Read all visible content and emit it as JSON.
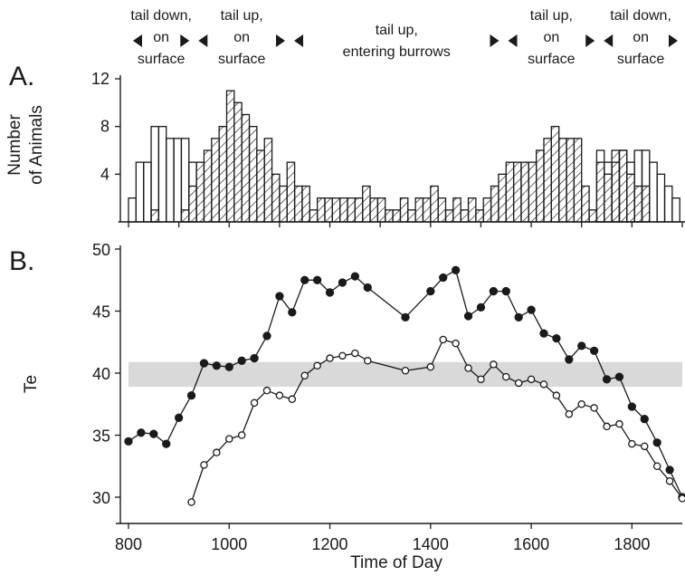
{
  "panel_labels": {
    "a": "A.",
    "b": "B."
  },
  "phases": [
    {
      "lines": [
        "tail down,",
        "on",
        "surface"
      ]
    },
    {
      "lines": [
        "tail up,",
        "on",
        "surface"
      ]
    },
    {
      "lines": [
        "tail up,",
        "entering burrows"
      ]
    },
    {
      "lines": [
        "tail up,",
        "on",
        "surface"
      ]
    },
    {
      "lines": [
        "tail down,",
        "on",
        "surface"
      ]
    }
  ],
  "colors": {
    "ink": "#1a1a1a",
    "band": "#d9d9d9",
    "background": "#ffffff"
  },
  "chart_data": [
    {
      "type": "bar",
      "panel": "A",
      "ylabel": [
        "Number",
        "of Animals"
      ],
      "ylim": [
        0,
        12
      ],
      "yticks": [
        4,
        8,
        12
      ],
      "xlim": [
        780,
        1910
      ],
      "xticks": [
        800,
        900,
        1000,
        1100,
        1200,
        1300,
        1400,
        1500,
        1600,
        1700,
        1800,
        1900
      ],
      "bin_width_minutes": 15,
      "series": [
        {
          "style": "open",
          "values": [
            {
              "x": 800,
              "y": 2
            },
            {
              "x": 815,
              "y": 5
            },
            {
              "x": 830,
              "y": 5
            },
            {
              "x": 845,
              "y": 8
            },
            {
              "x": 860,
              "y": 8
            },
            {
              "x": 875,
              "y": 7
            },
            {
              "x": 890,
              "y": 7
            },
            {
              "x": 905,
              "y": 7
            },
            {
              "x": 920,
              "y": 5
            },
            {
              "x": 1730,
              "y": 6
            },
            {
              "x": 1745,
              "y": 5
            },
            {
              "x": 1760,
              "y": 5
            },
            {
              "x": 1775,
              "y": 6
            },
            {
              "x": 1790,
              "y": 5
            },
            {
              "x": 1805,
              "y": 6
            },
            {
              "x": 1820,
              "y": 6
            },
            {
              "x": 1835,
              "y": 5
            },
            {
              "x": 1850,
              "y": 4
            },
            {
              "x": 1865,
              "y": 3
            },
            {
              "x": 1880,
              "y": 2
            }
          ]
        },
        {
          "style": "hatched",
          "values": [
            {
              "x": 845,
              "y": 1
            },
            {
              "x": 905,
              "y": 1
            },
            {
              "x": 920,
              "y": 3
            },
            {
              "x": 935,
              "y": 5
            },
            {
              "x": 950,
              "y": 6
            },
            {
              "x": 965,
              "y": 7
            },
            {
              "x": 980,
              "y": 8
            },
            {
              "x": 995,
              "y": 11
            },
            {
              "x": 1010,
              "y": 10
            },
            {
              "x": 1025,
              "y": 9
            },
            {
              "x": 1040,
              "y": 8
            },
            {
              "x": 1055,
              "y": 6
            },
            {
              "x": 1070,
              "y": 7
            },
            {
              "x": 1085,
              "y": 4
            },
            {
              "x": 1100,
              "y": 3
            },
            {
              "x": 1115,
              "y": 5
            },
            {
              "x": 1130,
              "y": 3
            },
            {
              "x": 1145,
              "y": 3
            },
            {
              "x": 1160,
              "y": 1
            },
            {
              "x": 1175,
              "y": 2
            },
            {
              "x": 1190,
              "y": 2
            },
            {
              "x": 1205,
              "y": 2
            },
            {
              "x": 1220,
              "y": 2
            },
            {
              "x": 1235,
              "y": 2
            },
            {
              "x": 1250,
              "y": 2
            },
            {
              "x": 1265,
              "y": 3
            },
            {
              "x": 1280,
              "y": 2
            },
            {
              "x": 1295,
              "y": 2
            },
            {
              "x": 1310,
              "y": 1
            },
            {
              "x": 1325,
              "y": 1
            },
            {
              "x": 1340,
              "y": 2
            },
            {
              "x": 1355,
              "y": 1
            },
            {
              "x": 1370,
              "y": 2
            },
            {
              "x": 1385,
              "y": 2
            },
            {
              "x": 1400,
              "y": 3
            },
            {
              "x": 1415,
              "y": 2
            },
            {
              "x": 1430,
              "y": 1
            },
            {
              "x": 1445,
              "y": 2
            },
            {
              "x": 1460,
              "y": 1
            },
            {
              "x": 1475,
              "y": 2
            },
            {
              "x": 1490,
              "y": 1
            },
            {
              "x": 1505,
              "y": 2
            },
            {
              "x": 1520,
              "y": 3
            },
            {
              "x": 1535,
              "y": 4
            },
            {
              "x": 1550,
              "y": 5
            },
            {
              "x": 1565,
              "y": 5
            },
            {
              "x": 1580,
              "y": 5
            },
            {
              "x": 1595,
              "y": 5
            },
            {
              "x": 1610,
              "y": 6
            },
            {
              "x": 1625,
              "y": 7
            },
            {
              "x": 1640,
              "y": 8
            },
            {
              "x": 1655,
              "y": 7
            },
            {
              "x": 1670,
              "y": 7
            },
            {
              "x": 1685,
              "y": 7
            },
            {
              "x": 1700,
              "y": 3
            },
            {
              "x": 1715,
              "y": 1
            },
            {
              "x": 1730,
              "y": 5
            },
            {
              "x": 1745,
              "y": 4
            },
            {
              "x": 1760,
              "y": 6
            },
            {
              "x": 1775,
              "y": 6
            },
            {
              "x": 1790,
              "y": 4
            },
            {
              "x": 1805,
              "y": 3
            },
            {
              "x": 1820,
              "y": 3
            }
          ]
        }
      ]
    },
    {
      "type": "line",
      "panel": "B",
      "xlabel": "Time of Day",
      "ylabel": "Te",
      "ylim": [
        29,
        50
      ],
      "yticks": [
        30,
        35,
        40,
        45,
        50
      ],
      "xlim": [
        780,
        1910
      ],
      "xticks": [
        800,
        1000,
        1200,
        1400,
        1600,
        1800
      ],
      "band": [
        38.9,
        40.9
      ],
      "series": [
        {
          "marker": "filled",
          "values": [
            [
              800,
              34.5
            ],
            [
              825,
              35.2
            ],
            [
              850,
              35.1
            ],
            [
              875,
              34.3
            ],
            [
              900,
              36.4
            ],
            [
              925,
              38.2
            ],
            [
              950,
              40.8
            ],
            [
              975,
              40.6
            ],
            [
              1000,
              40.5
            ],
            [
              1025,
              41.0
            ],
            [
              1050,
              41.2
            ],
            [
              1075,
              43.0
            ],
            [
              1100,
              46.2
            ],
            [
              1125,
              44.9
            ],
            [
              1150,
              47.5
            ],
            [
              1175,
              47.5
            ],
            [
              1200,
              46.5
            ],
            [
              1225,
              47.3
            ],
            [
              1250,
              47.8
            ],
            [
              1275,
              46.9
            ],
            [
              1350,
              44.5
            ],
            [
              1400,
              46.6
            ],
            [
              1425,
              47.7
            ],
            [
              1450,
              48.3
            ],
            [
              1475,
              44.6
            ],
            [
              1500,
              45.3
            ],
            [
              1525,
              46.6
            ],
            [
              1550,
              46.6
            ],
            [
              1575,
              44.5
            ],
            [
              1600,
              45.1
            ],
            [
              1625,
              43.2
            ],
            [
              1650,
              42.8
            ],
            [
              1675,
              41.1
            ],
            [
              1700,
              42.2
            ],
            [
              1725,
              41.8
            ],
            [
              1750,
              39.5
            ],
            [
              1775,
              39.7
            ],
            [
              1800,
              37.3
            ],
            [
              1825,
              36.3
            ],
            [
              1850,
              34.4
            ],
            [
              1875,
              32.2
            ],
            [
              1900,
              30.0
            ]
          ]
        },
        {
          "marker": "open",
          "values": [
            [
              925,
              29.6
            ],
            [
              950,
              32.6
            ],
            [
              975,
              33.6
            ],
            [
              1000,
              34.7
            ],
            [
              1025,
              35.0
            ],
            [
              1050,
              37.6
            ],
            [
              1075,
              38.6
            ],
            [
              1100,
              38.2
            ],
            [
              1125,
              37.9
            ],
            [
              1150,
              39.8
            ],
            [
              1175,
              40.6
            ],
            [
              1200,
              41.2
            ],
            [
              1225,
              41.4
            ],
            [
              1250,
              41.6
            ],
            [
              1275,
              41.0
            ],
            [
              1350,
              40.2
            ],
            [
              1400,
              40.5
            ],
            [
              1425,
              42.7
            ],
            [
              1450,
              42.4
            ],
            [
              1475,
              40.4
            ],
            [
              1500,
              39.5
            ],
            [
              1525,
              40.7
            ],
            [
              1550,
              39.7
            ],
            [
              1575,
              39.2
            ],
            [
              1600,
              39.5
            ],
            [
              1625,
              39.1
            ],
            [
              1650,
              38.2
            ],
            [
              1675,
              36.7
            ],
            [
              1700,
              37.5
            ],
            [
              1725,
              37.2
            ],
            [
              1750,
              35.7
            ],
            [
              1775,
              35.9
            ],
            [
              1800,
              34.3
            ],
            [
              1825,
              34.1
            ],
            [
              1850,
              32.5
            ],
            [
              1875,
              31.3
            ],
            [
              1900,
              29.9
            ]
          ]
        }
      ]
    }
  ]
}
